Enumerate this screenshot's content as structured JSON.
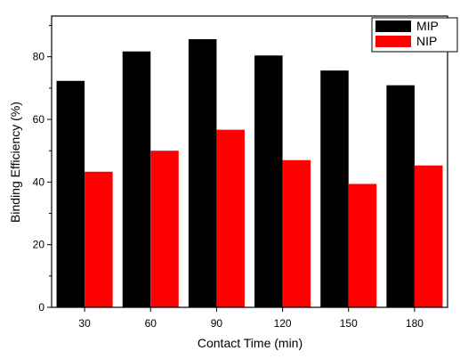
{
  "chart_data": {
    "type": "bar",
    "xlabel": "Contact Time (min)",
    "ylabel": "Binding Efficiency (%)",
    "categories": [
      "30",
      "60",
      "90",
      "120",
      "150",
      "180"
    ],
    "series": [
      {
        "name": "MIP",
        "color": "#000000",
        "values": [
          72.3,
          81.7,
          85.6,
          80.4,
          75.6,
          70.9
        ]
      },
      {
        "name": "NIP",
        "color": "#ff0000",
        "values": [
          43.3,
          50.0,
          56.7,
          47.0,
          39.4,
          45.3
        ]
      }
    ],
    "ylim": [
      0,
      93
    ],
    "yticks": [
      0,
      20,
      40,
      60,
      80
    ],
    "grid": false,
    "legend": "top-right"
  }
}
